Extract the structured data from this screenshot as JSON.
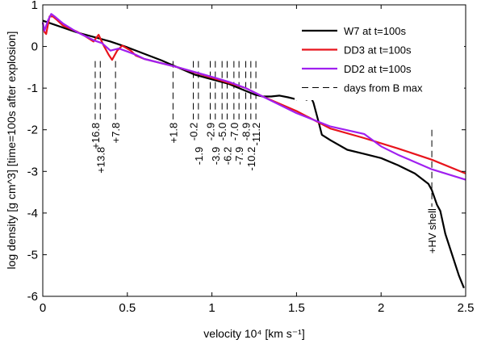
{
  "chart_data": {
    "type": "line",
    "xlabel": "velocity 10⁴ [km s⁻¹]",
    "ylabel": "log density [g cm^3] [time=100s after explosion]",
    "xlim": [
      0,
      2.5
    ],
    "ylim": [
      -6,
      1
    ],
    "xticks": [
      "0",
      "0.5",
      "1",
      "1.5",
      "2",
      "2.5"
    ],
    "yticks": [
      "1",
      "0",
      "-1",
      "-2",
      "-3",
      "-4",
      "-5",
      "-6"
    ],
    "grid": false,
    "legend_position": "top-right",
    "series": [
      {
        "name": "W7 at t=100s",
        "color": "#000000",
        "points": [
          [
            0.0,
            0.62
          ],
          [
            0.2,
            0.34
          ],
          [
            0.4,
            0.12
          ],
          [
            0.5,
            -0.02
          ],
          [
            0.7,
            -0.33
          ],
          [
            0.9,
            -0.68
          ],
          [
            1.1,
            -0.9
          ],
          [
            1.25,
            -1.15
          ],
          [
            1.3,
            -1.2
          ],
          [
            1.35,
            -1.2
          ],
          [
            1.4,
            -1.18
          ],
          [
            1.45,
            -1.22
          ],
          [
            1.5,
            -1.27
          ],
          [
            1.53,
            -1.22
          ],
          [
            1.56,
            -1.28
          ],
          [
            1.58,
            -1.18
          ],
          [
            1.6,
            -1.35
          ],
          [
            1.63,
            -1.8
          ],
          [
            1.65,
            -2.12
          ],
          [
            1.7,
            -2.25
          ],
          [
            1.8,
            -2.48
          ],
          [
            1.9,
            -2.58
          ],
          [
            2.0,
            -2.68
          ],
          [
            2.1,
            -2.85
          ],
          [
            2.2,
            -3.05
          ],
          [
            2.28,
            -3.3
          ],
          [
            2.3,
            -3.45
          ],
          [
            2.33,
            -3.8
          ],
          [
            2.35,
            -3.95
          ],
          [
            2.38,
            -4.5
          ],
          [
            2.42,
            -5.0
          ],
          [
            2.46,
            -5.5
          ],
          [
            2.49,
            -5.8
          ]
        ]
      },
      {
        "name": "DD3 at t=100s",
        "color": "#e8141c",
        "points": [
          [
            0.0,
            0.58
          ],
          [
            0.01,
            0.35
          ],
          [
            0.02,
            0.3
          ],
          [
            0.04,
            0.72
          ],
          [
            0.06,
            0.72
          ],
          [
            0.08,
            0.65
          ],
          [
            0.12,
            0.5
          ],
          [
            0.2,
            0.36
          ],
          [
            0.25,
            0.25
          ],
          [
            0.3,
            0.12
          ],
          [
            0.33,
            0.28
          ],
          [
            0.36,
            0.02
          ],
          [
            0.39,
            -0.2
          ],
          [
            0.41,
            -0.32
          ],
          [
            0.44,
            -0.1
          ],
          [
            0.47,
            0.02
          ],
          [
            0.52,
            -0.1
          ],
          [
            0.55,
            -0.22
          ],
          [
            0.6,
            -0.3
          ],
          [
            0.8,
            -0.5
          ],
          [
            1.0,
            -0.75
          ],
          [
            1.2,
            -1.0
          ],
          [
            1.3,
            -1.2
          ],
          [
            1.5,
            -1.55
          ],
          [
            1.7,
            -1.97
          ],
          [
            1.9,
            -2.2
          ],
          [
            2.1,
            -2.45
          ],
          [
            2.3,
            -2.72
          ],
          [
            2.5,
            -3.05
          ]
        ]
      },
      {
        "name": "DD2 at t=100s",
        "color": "#a020f0",
        "points": [
          [
            0.0,
            0.58
          ],
          [
            0.01,
            0.38
          ],
          [
            0.03,
            0.62
          ],
          [
            0.05,
            0.78
          ],
          [
            0.07,
            0.72
          ],
          [
            0.12,
            0.55
          ],
          [
            0.2,
            0.35
          ],
          [
            0.3,
            0.15
          ],
          [
            0.35,
            0.08
          ],
          [
            0.4,
            -0.1
          ],
          [
            0.45,
            -0.05
          ],
          [
            0.5,
            -0.12
          ],
          [
            0.55,
            -0.2
          ],
          [
            0.6,
            -0.3
          ],
          [
            0.8,
            -0.5
          ],
          [
            1.0,
            -0.73
          ],
          [
            1.1,
            -0.85
          ],
          [
            1.2,
            -1.0
          ],
          [
            1.3,
            -1.2
          ],
          [
            1.5,
            -1.6
          ],
          [
            1.7,
            -1.92
          ],
          [
            1.9,
            -2.1
          ],
          [
            2.0,
            -2.4
          ],
          [
            2.1,
            -2.6
          ],
          [
            2.3,
            -2.95
          ],
          [
            2.5,
            -3.2
          ]
        ]
      }
    ],
    "legend": [
      {
        "label": "W7 at t=100s",
        "color": "#000000",
        "style": "solid"
      },
      {
        "label": "DD3 at t=100s",
        "color": "#e8141c",
        "style": "solid"
      },
      {
        "label": "DD2 at t=100s",
        "color": "#a020f0",
        "style": "solid"
      },
      {
        "label": "days from B max",
        "color": "#000000",
        "style": "dashed"
      }
    ],
    "day_markers": [
      {
        "label": "+16.8",
        "x": 0.31,
        "y_top": -0.35,
        "y_bottom": -1.75,
        "label_pos": "upper"
      },
      {
        "label": "+13.8",
        "x": 0.34,
        "y_top": -0.35,
        "y_bottom": -1.75,
        "label_pos": "lower"
      },
      {
        "label": "+7.8",
        "x": 0.43,
        "y_top": -0.35,
        "y_bottom": -1.75,
        "label_pos": "upper"
      },
      {
        "label": "+1.8",
        "x": 0.77,
        "y_top": -0.35,
        "y_bottom": -1.75,
        "label_pos": "upper"
      },
      {
        "label": "-0.2",
        "x": 0.89,
        "y_top": -0.35,
        "y_bottom": -1.75,
        "label_pos": "upper"
      },
      {
        "label": "-1.9",
        "x": 0.92,
        "y_top": -0.35,
        "y_bottom": -1.75,
        "label_pos": "lower"
      },
      {
        "label": "-2.9",
        "x": 0.99,
        "y_top": -0.35,
        "y_bottom": -1.75,
        "label_pos": "upper"
      },
      {
        "label": "-3.9",
        "x": 1.02,
        "y_top": -0.35,
        "y_bottom": -1.75,
        "label_pos": "lower"
      },
      {
        "label": "-5.0",
        "x": 1.06,
        "y_top": -0.35,
        "y_bottom": -1.75,
        "label_pos": "upper"
      },
      {
        "label": "-6.2",
        "x": 1.09,
        "y_top": -0.35,
        "y_bottom": -1.75,
        "label_pos": "lower"
      },
      {
        "label": "-7.0",
        "x": 1.13,
        "y_top": -0.35,
        "y_bottom": -1.75,
        "label_pos": "upper"
      },
      {
        "label": "-7.9",
        "x": 1.16,
        "y_top": -0.35,
        "y_bottom": -1.75,
        "label_pos": "lower"
      },
      {
        "label": "-8.9",
        "x": 1.2,
        "y_top": -0.35,
        "y_bottom": -1.75,
        "label_pos": "upper"
      },
      {
        "label": "-10.2",
        "x": 1.23,
        "y_top": -0.35,
        "y_bottom": -1.75,
        "label_pos": "lower"
      },
      {
        "label": "-11.2",
        "x": 1.26,
        "y_top": -0.35,
        "y_bottom": -1.75,
        "label_pos": "upper"
      },
      {
        "label": "+HV shell",
        "x": 2.3,
        "y_top": -2.0,
        "y_bottom": -3.85,
        "label_pos": "hv"
      }
    ]
  }
}
